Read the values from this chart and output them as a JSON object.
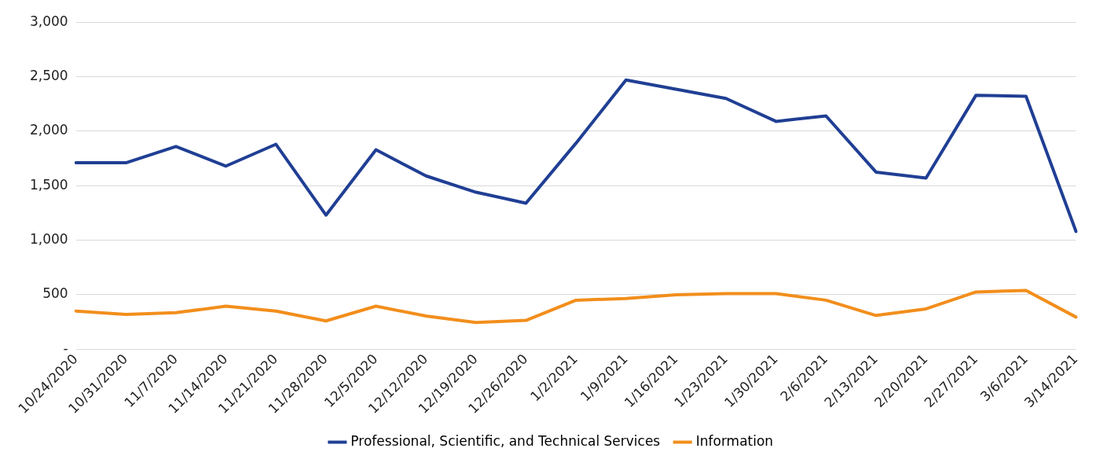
{
  "chart_data": {
    "type": "line",
    "categories": [
      "10/24/2020",
      "10/31/2020",
      "11/7/2020",
      "11/14/2020",
      "11/21/2020",
      "11/28/2020",
      "12/5/2020",
      "12/12/2020",
      "12/19/2020",
      "12/26/2020",
      "1/2/2021",
      "1/9/2021",
      "1/16/2021",
      "1/23/2021",
      "1/30/2021",
      "2/6/2021",
      "2/13/2021",
      "2/20/2021",
      "2/27/2021",
      "3/6/2021",
      "3/14/2021"
    ],
    "series": [
      {
        "name": "Professional, Scientific, and Technical Services",
        "color": "#203f94",
        "values": [
          1710,
          1710,
          1860,
          1680,
          1880,
          1230,
          1830,
          1590,
          1440,
          1340,
          1890,
          2470,
          2385,
          2300,
          2090,
          2140,
          1625,
          1570,
          2330,
          2320,
          1080
        ]
      },
      {
        "name": "Information",
        "color": "#f28e1c",
        "values": [
          350,
          320,
          335,
          395,
          350,
          260,
          395,
          305,
          245,
          265,
          450,
          465,
          500,
          510,
          510,
          450,
          310,
          370,
          525,
          540,
          295
        ]
      }
    ],
    "ylim": [
      0,
      3000
    ],
    "yticks": [
      {
        "value": 0,
        "label": "-"
      },
      500,
      {
        "value": 1000,
        "label": "1,000"
      },
      {
        "value": 1500,
        "label": "1,500"
      },
      {
        "value": 2000,
        "label": "2,000"
      },
      {
        "value": 2500,
        "label": "2,500"
      },
      {
        "value": 3000,
        "label": "3,000"
      }
    ],
    "grid": "y",
    "legend": "bottom",
    "marker": "none",
    "line_style": "solid"
  }
}
